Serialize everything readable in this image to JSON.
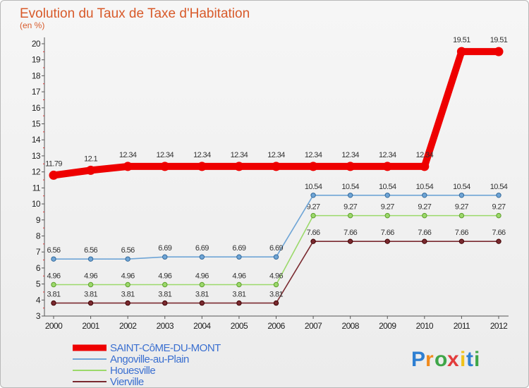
{
  "chart_data": {
    "type": "line",
    "title": "Evolution du Taux de Taxe d'Habitation",
    "subtitle": "(en %)",
    "x": [
      "2000",
      "2001",
      "2002",
      "2003",
      "2004",
      "2005",
      "2006",
      "2007",
      "2008",
      "2009",
      "2010",
      "2011",
      "2012"
    ],
    "ylim": [
      3,
      20
    ],
    "yticks": [
      "3",
      "4",
      "5",
      "6",
      "7",
      "8",
      "9",
      "10",
      "11",
      "12",
      "13",
      "14",
      "15",
      "16",
      "17",
      "18",
      "19",
      "20"
    ],
    "grid": false,
    "legend_position": "bottom-left",
    "series": [
      {
        "name": "SAINT-CôME-DU-MONT",
        "color": "#ee0000",
        "values": [
          11.79,
          12.1,
          12.34,
          12.34,
          12.34,
          12.34,
          12.34,
          12.34,
          12.34,
          12.34,
          12.34,
          19.51,
          19.51
        ],
        "labels": [
          "11.79",
          "12.1",
          "12.34",
          "12.34",
          "12.34",
          "12.34",
          "12.34",
          "12.34",
          "12.34",
          "12.34",
          "12.34",
          "19.51",
          "19.51"
        ]
      },
      {
        "name": "Angoville-au-Plain",
        "color": "#6fa5d6",
        "values": [
          6.56,
          6.56,
          6.56,
          6.69,
          6.69,
          6.69,
          6.69,
          10.54,
          10.54,
          10.54,
          10.54,
          10.54,
          10.54
        ],
        "labels": [
          "6.56",
          "6.56",
          "6.56",
          "6.69",
          "6.69",
          "6.69",
          "6.69",
          "10.54",
          "10.54",
          "10.54",
          "10.54",
          "10.54",
          "10.54"
        ]
      },
      {
        "name": "Houesville",
        "color": "#9bd96a",
        "values": [
          4.96,
          4.96,
          4.96,
          4.96,
          4.96,
          4.96,
          4.96,
          9.27,
          9.27,
          9.27,
          9.27,
          9.27,
          9.27
        ],
        "labels": [
          "4.96",
          "4.96",
          "4.96",
          "4.96",
          "4.96",
          "4.96",
          "4.96",
          "9.27",
          "9.27",
          "9.27",
          "9.27",
          "9.27",
          "9.27"
        ]
      },
      {
        "name": "Vierville",
        "color": "#7a2a30",
        "values": [
          3.81,
          3.81,
          3.81,
          3.81,
          3.81,
          3.81,
          3.81,
          7.66,
          7.66,
          7.66,
          7.66,
          7.66,
          7.66
        ],
        "labels": [
          "3.81",
          "3.81",
          "3.81",
          "3.81",
          "3.81",
          "3.81",
          "3.81",
          "7.66",
          "7.66",
          "7.66",
          "7.66",
          "7.66",
          "7.66"
        ]
      }
    ]
  },
  "brand": {
    "letters": [
      "P",
      "r",
      "o",
      "x",
      "i",
      "t",
      "i"
    ],
    "colors": [
      "#2e7fd2",
      "#f08a1c",
      "#3fa648",
      "#e23c3c",
      "#f0c21c",
      "#2e7fd2",
      "#3fa648"
    ]
  }
}
